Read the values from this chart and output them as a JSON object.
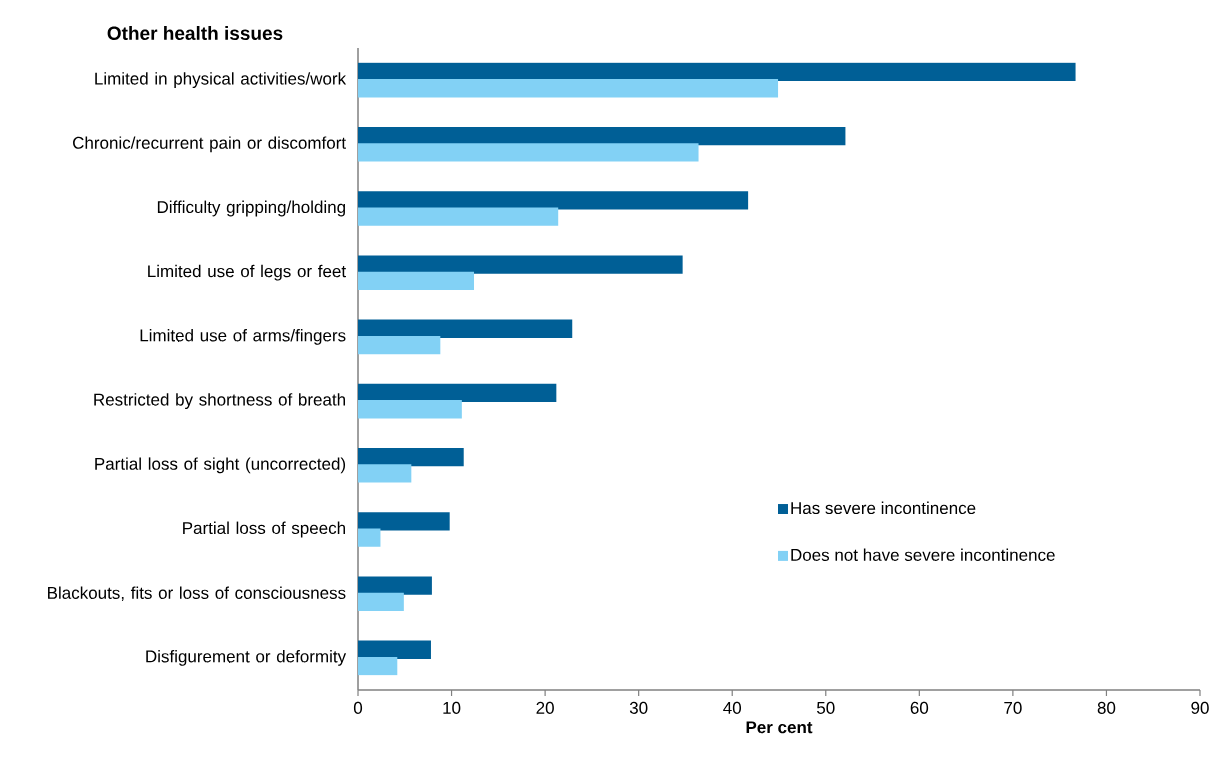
{
  "chart_data": {
    "type": "bar",
    "orientation": "horizontal",
    "title": "Other health issues",
    "xlabel": "Per cent",
    "categories": [
      "Limited in physical activities/work",
      "Chronic/recurrent pain or discomfort",
      "Difficulty gripping/holding",
      "Limited use of legs or feet",
      "Limited use of arms/fingers",
      "Restricted by shortness of breath",
      "Partial loss of sight (uncorrected)",
      "Partial loss of speech",
      "Blackouts, fits or loss of consciousness",
      "Disfigurement or deformity"
    ],
    "series": [
      {
        "name": "Has severe incontinence",
        "color": "#005f96",
        "values": [
          76.7,
          52.1,
          41.7,
          34.7,
          22.9,
          21.2,
          11.3,
          9.8,
          7.9,
          7.8
        ]
      },
      {
        "name": "Does not have severe incontinence",
        "color": "#82d1f5",
        "values": [
          44.9,
          36.4,
          21.4,
          12.4,
          8.8,
          11.1,
          5.7,
          2.4,
          4.9,
          4.2
        ]
      }
    ],
    "xlim": [
      0,
      90
    ],
    "xticks": [
      0,
      10,
      20,
      30,
      40,
      50,
      60,
      70,
      80,
      90
    ],
    "grid": false,
    "legend": "right"
  }
}
